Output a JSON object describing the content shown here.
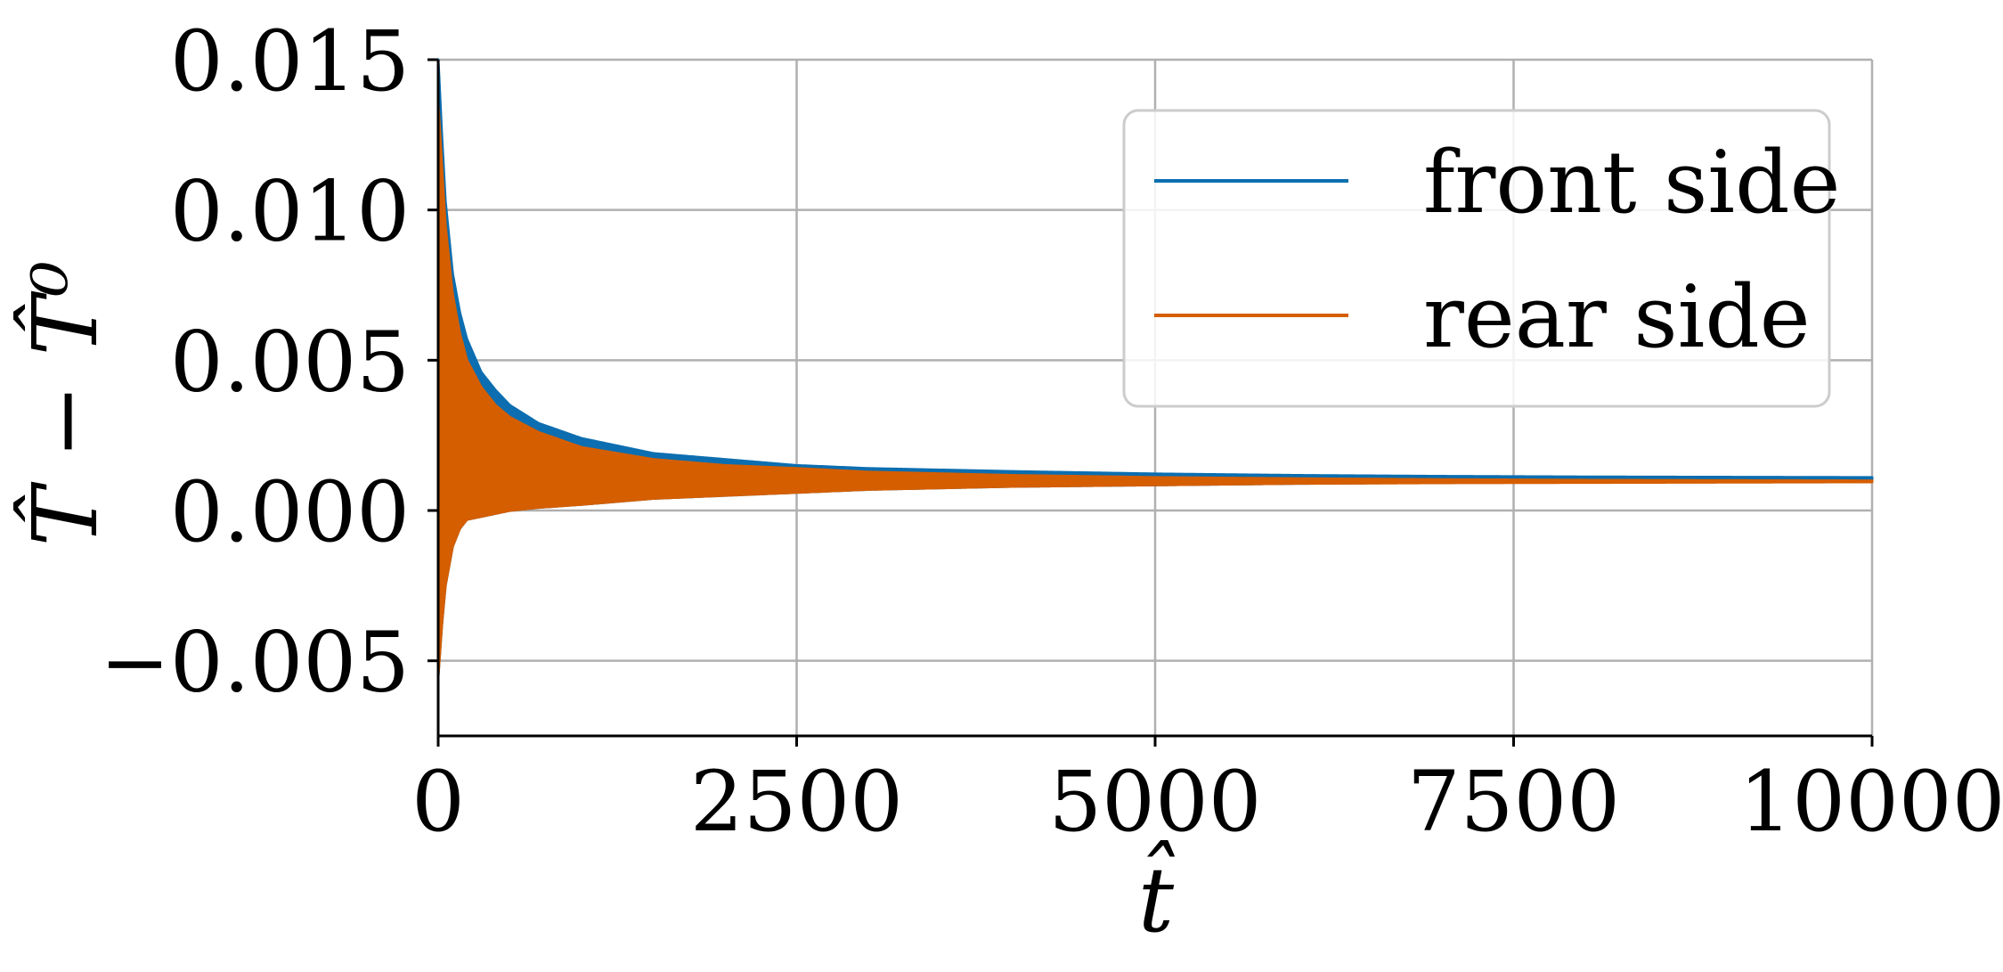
{
  "chart_data": {
    "type": "line",
    "title": "",
    "xlabel": "t̂",
    "ylabel": "T̂ − T̂⁰",
    "xlim": [
      0,
      10000
    ],
    "ylim": [
      -0.0075,
      0.015
    ],
    "x_ticks": [
      "0",
      "2500",
      "5000",
      "7500",
      "10000"
    ],
    "x_tick_values": [
      0,
      2500,
      5000,
      7500,
      10000
    ],
    "y_ticks": [
      "0.015",
      "0.010",
      "0.005",
      "0.000",
      "−0.005"
    ],
    "y_tick_values": [
      0.015,
      0.01,
      0.005,
      0.0,
      -0.005
    ],
    "grid": true,
    "legend_placement": "top-right",
    "series": [
      {
        "name": "front side",
        "color": "#0c6eb0",
        "style": "oscillating band (upper and lower envelope)",
        "x": [
          0,
          25,
          50,
          100,
          150,
          200,
          300,
          400,
          500,
          700,
          1000,
          1500,
          2000,
          2500,
          3000,
          4000,
          5000,
          6000,
          7000,
          8000,
          9000,
          10000
        ],
        "upper": [
          0.015,
          0.0125,
          0.0103,
          0.0079,
          0.0066,
          0.0057,
          0.0046,
          0.004,
          0.0035,
          0.0029,
          0.0024,
          0.0019,
          0.0017,
          0.0015,
          0.0014,
          0.0013,
          0.00122,
          0.00117,
          0.00114,
          0.00112,
          0.00111,
          0.0011
        ],
        "lower": [
          -0.0055,
          -0.0038,
          -0.0025,
          -0.0012,
          -0.0006,
          -0.0003,
          -0.0002,
          -0.0001,
          0.0,
          0.0001,
          0.0002,
          0.0004,
          0.0005,
          0.0006,
          0.0007,
          0.0008,
          0.00085,
          0.0009,
          0.00093,
          0.00095,
          0.00097,
          0.00098
        ]
      },
      {
        "name": "rear side",
        "color": "#d55e00",
        "style": "oscillating band (upper and lower envelope)",
        "x": [
          0,
          25,
          50,
          100,
          150,
          200,
          300,
          400,
          500,
          700,
          1000,
          1500,
          2000,
          2500,
          3000,
          4000,
          5000,
          6000,
          7000,
          8000,
          9000,
          10000
        ],
        "upper": [
          0.0135,
          0.0115,
          0.0095,
          0.0072,
          0.0059,
          0.005,
          0.0041,
          0.0035,
          0.0031,
          0.0026,
          0.0021,
          0.0017,
          0.0015,
          0.0014,
          0.00128,
          0.00117,
          0.0011,
          0.00106,
          0.00103,
          0.00101,
          0.001,
          0.00099
        ],
        "lower": [
          -0.0055,
          -0.0038,
          -0.0025,
          -0.0012,
          -0.0006,
          -0.0003,
          -0.0002,
          -0.0001,
          0.0,
          0.0001,
          0.0002,
          0.0004,
          0.0005,
          0.0006,
          0.0007,
          0.0008,
          0.00085,
          0.0009,
          0.00092,
          0.00093,
          0.00094,
          0.00095
        ]
      }
    ]
  }
}
